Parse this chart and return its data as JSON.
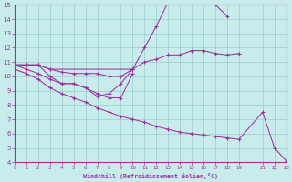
{
  "bg_color": "#c8ecec",
  "line_color": "#993399",
  "grid_color": "#99cccc",
  "xlabel": "Windchill (Refroidissement éolien,°C)",
  "xmin": 0,
  "xmax": 23,
  "ymin": 4,
  "ymax": 15,
  "xtick_vals": [
    0,
    1,
    2,
    3,
    4,
    5,
    6,
    7,
    8,
    9,
    10,
    11,
    12,
    13,
    14,
    15,
    16,
    17,
    18,
    19,
    21,
    22,
    23
  ],
  "ytick_vals": [
    4,
    5,
    6,
    7,
    8,
    9,
    10,
    11,
    12,
    13,
    14,
    15
  ],
  "curves": [
    {
      "x": [
        0,
        1,
        2,
        3,
        4,
        5,
        6,
        7,
        8,
        9,
        10,
        11,
        12,
        13,
        14,
        15,
        16,
        17,
        18
      ],
      "y": [
        10.8,
        10.8,
        10.8,
        10.5,
        10.3,
        10.2,
        10.2,
        10.2,
        10.0,
        10.0,
        10.5,
        12.0,
        13.5,
        15.2,
        15.4,
        15.5,
        15.5,
        15.0,
        14.2
      ]
    },
    {
      "x": [
        0,
        1,
        2,
        3,
        10,
        11,
        12,
        13,
        14,
        15,
        16,
        17,
        18,
        19
      ],
      "y": [
        10.8,
        10.8,
        10.8,
        10.5,
        10.5,
        11.0,
        11.2,
        11.5,
        11.5,
        11.8,
        11.8,
        11.6,
        11.5,
        11.6
      ]
    },
    {
      "x": [
        0,
        1,
        2,
        3,
        4,
        5,
        6,
        7,
        8,
        9,
        10
      ],
      "y": [
        10.8,
        10.8,
        10.8,
        10.0,
        9.5,
        9.5,
        9.2,
        8.8,
        8.5,
        8.5,
        10.2
      ]
    },
    {
      "x": [
        0,
        1,
        2,
        3,
        4,
        5,
        6,
        7,
        8,
        9,
        10
      ],
      "y": [
        10.8,
        10.5,
        10.2,
        9.8,
        9.5,
        9.5,
        9.2,
        8.6,
        8.8,
        9.5,
        10.5
      ]
    },
    {
      "x": [
        0,
        1,
        2,
        3,
        4,
        5,
        6,
        7,
        8,
        9,
        10,
        11,
        12,
        13,
        14,
        15,
        16,
        17,
        18,
        19,
        21,
        22,
        23
      ],
      "y": [
        10.5,
        10.2,
        9.8,
        9.2,
        8.8,
        8.5,
        8.2,
        7.8,
        7.5,
        7.2,
        7.0,
        6.8,
        6.5,
        6.3,
        6.1,
        6.0,
        5.9,
        5.8,
        5.7,
        5.6,
        7.5,
        5.0,
        4.1
      ]
    }
  ]
}
